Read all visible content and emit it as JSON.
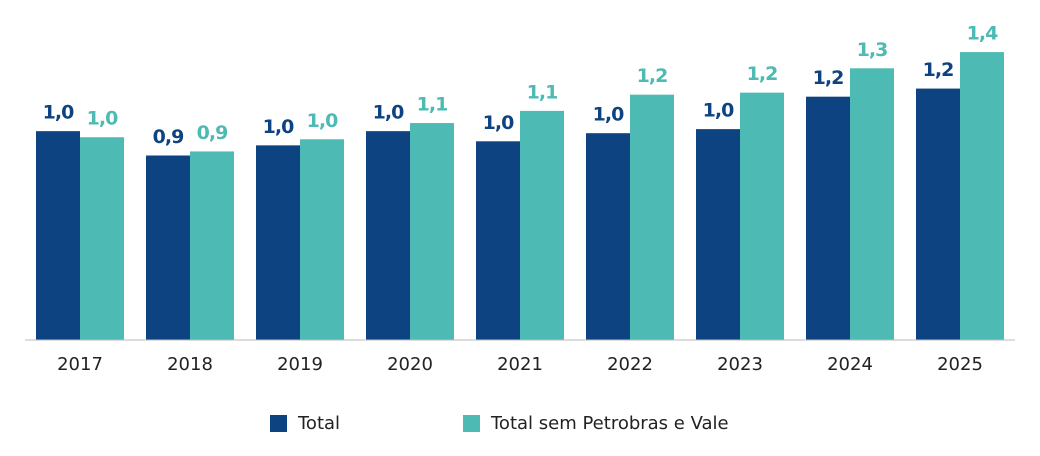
{
  "chart_data": {
    "type": "bar",
    "categories": [
      "2017",
      "2018",
      "2019",
      "2020",
      "2021",
      "2022",
      "2023",
      "2024",
      "2025"
    ],
    "series": [
      {
        "name": "Total",
        "color": "#0e4381",
        "values": [
          1.03,
          0.91,
          0.96,
          1.03,
          0.98,
          1.02,
          1.04,
          1.2,
          1.24
        ],
        "value_labels": [
          "1,0",
          "0,9",
          "1,0",
          "1,0",
          "1,0",
          "1,0",
          "1,0",
          "1,2",
          "1,2"
        ]
      },
      {
        "name": "Total sem Petrobras e Vale",
        "color": "#4dbab4",
        "values": [
          1.0,
          0.93,
          0.99,
          1.07,
          1.13,
          1.21,
          1.22,
          1.34,
          1.42
        ],
        "value_labels": [
          "1,0",
          "0,9",
          "1,0",
          "1,1",
          "1,1",
          "1,2",
          "1,2",
          "1,3",
          "1,4"
        ]
      }
    ],
    "ylim": [
      0,
      1.45
    ],
    "legend": "bottom"
  }
}
